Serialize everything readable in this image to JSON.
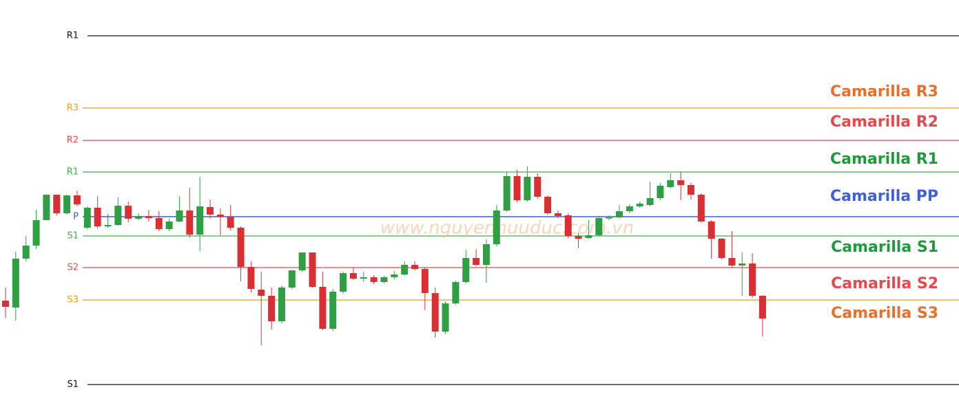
{
  "chart_data": {
    "type": "candlestick",
    "ylim": [
      0,
      596
    ],
    "up_color": "#2ea043",
    "down_color": "#dc2f34",
    "open": [
      159,
      149,
      220,
      239,
      276,
      313,
      286,
      312,
      265,
      294,
      267,
      269,
      297,
      278,
      282,
      279,
      263,
      274,
      290,
      255,
      295,
      284,
      281,
      265,
      208,
      175,
      166,
      129,
      178,
      203,
      229,
      179,
      118,
      172,
      199,
      191,
      193,
      186,
      193,
      197,
      211,
      205,
      170,
      114,
      155,
      186,
      221,
      211,
      241,
      290,
      340,
      305,
      339,
      310,
      286,
      283,
      253,
      250,
      254,
      279,
      280,
      289,
      296,
      298,
      308,
      324,
      334,
      327,
      313,
      274,
      249,
      221,
      210,
      213,
      166
    ],
    "high": [
      178,
      230,
      253,
      291,
      313,
      313,
      313,
      319,
      296,
      311,
      285,
      309,
      303,
      286,
      291,
      289,
      278,
      311,
      323,
      339,
      306,
      293,
      298,
      267,
      216,
      201,
      178,
      181,
      203,
      229,
      229,
      201,
      176,
      201,
      207,
      201,
      196,
      195,
      202,
      216,
      216,
      207,
      178,
      158,
      188,
      233,
      234,
      248,
      298,
      346,
      349,
      354,
      344,
      312,
      290,
      286,
      258,
      276,
      282,
      283,
      298,
      299,
      303,
      332,
      330,
      344,
      346,
      330,
      315,
      276,
      250,
      260,
      229,
      228,
      167
    ],
    "low": [
      134,
      130,
      216,
      234,
      276,
      283,
      284,
      296,
      263,
      264,
      265,
      268,
      273,
      276,
      274,
      260,
      260,
      273,
      251,
      231,
      278,
      254,
      261,
      187,
      171,
      94,
      117,
      126,
      176,
      201,
      178,
      116,
      115,
      169,
      189,
      186,
      183,
      184,
      190,
      195,
      203,
      145,
      105,
      111,
      153,
      184,
      209,
      185,
      238,
      288,
      302,
      303,
      307,
      284,
      279,
      250,
      235,
      249,
      253,
      276,
      278,
      286,
      294,
      296,
      305,
      322,
      305,
      306,
      272,
      220,
      219,
      207,
      166,
      163,
      107
    ],
    "close": [
      150,
      220,
      239,
      276,
      313,
      286,
      312,
      299,
      294,
      267,
      269,
      297,
      278,
      282,
      279,
      263,
      274,
      290,
      255,
      296,
      284,
      281,
      265,
      208,
      176,
      166,
      129,
      178,
      203,
      229,
      179,
      118,
      172,
      199,
      191,
      193,
      186,
      193,
      197,
      211,
      205,
      170,
      114,
      155,
      186,
      221,
      211,
      241,
      290,
      340,
      305,
      339,
      310,
      286,
      282,
      253,
      249,
      254,
      279,
      280,
      289,
      296,
      300,
      308,
      326,
      334,
      327,
      313,
      274,
      249,
      221,
      210,
      213,
      166,
      133
    ],
    "levels": [
      {
        "label": "R1",
        "value": 544,
        "color": "#111111"
      },
      {
        "label": "R3",
        "value": 439,
        "color": "#f39c12"
      },
      {
        "label": "R2",
        "value": 392,
        "color": "#e8474c"
      },
      {
        "label": "R1",
        "value": 346,
        "color": "#3cb04a"
      },
      {
        "label": "P",
        "value": 281,
        "color": "#3a5fcd"
      },
      {
        "label": "S1",
        "value": 253,
        "color": "#3cb04a"
      },
      {
        "label": "S2",
        "value": 207,
        "color": "#e8474c"
      },
      {
        "label": "S3",
        "value": 160,
        "color": "#f39c12"
      },
      {
        "label": "S1",
        "value": 37,
        "color": "#111111"
      }
    ],
    "annotations": [
      {
        "text": "Camarilla R3",
        "color": "#e8702a"
      },
      {
        "text": "Camarilla R2",
        "color": "#e8474c"
      },
      {
        "text": "Camarilla R1",
        "color": "#1e9a3a"
      },
      {
        "text": "Camarilla PP",
        "color": "#4060d8"
      },
      {
        "text": "Camarilla S1",
        "color": "#1e9a3a"
      },
      {
        "text": "Camarilla S2",
        "color": "#e8474c"
      },
      {
        "text": "Camarilla S3",
        "color": "#e8702a"
      }
    ],
    "watermark": "www.nguyenhuuduc.com.vn"
  }
}
